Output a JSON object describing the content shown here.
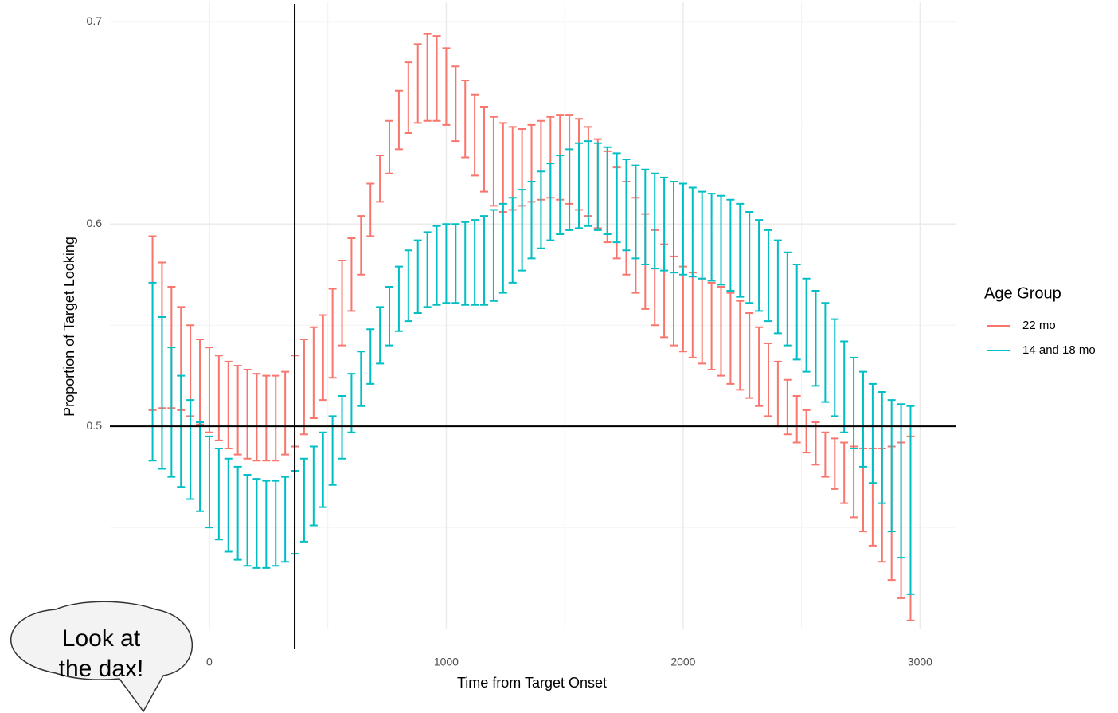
{
  "chart_data": {
    "type": "errorbar",
    "x_label": "Time from Target Onset",
    "y_label": "Proportion of Target Looking",
    "xlim": [
      -420,
      3150
    ],
    "xticks": [
      0,
      1000,
      2000,
      3000
    ],
    "minor_xticks": [
      500,
      1500,
      2500
    ],
    "ylim": [
      0.4,
      0.71
    ],
    "yticks": [
      0.5,
      0.6,
      0.7
    ],
    "minor_yticks": [
      0.45,
      0.55,
      0.65
    ],
    "grid": true,
    "hline": 0.5,
    "vline": 360,
    "legend_title": "Age Group",
    "legend_position": "right",
    "x": [
      -240,
      -200,
      -160,
      -120,
      -80,
      -40,
      0,
      40,
      80,
      120,
      160,
      200,
      240,
      280,
      320,
      360,
      400,
      440,
      480,
      520,
      560,
      600,
      640,
      680,
      720,
      760,
      800,
      840,
      880,
      920,
      960,
      1000,
      1040,
      1080,
      1120,
      1160,
      1200,
      1240,
      1280,
      1320,
      1360,
      1400,
      1440,
      1480,
      1520,
      1560,
      1600,
      1640,
      1680,
      1720,
      1760,
      1800,
      1840,
      1880,
      1920,
      1960,
      2000,
      2040,
      2080,
      2120,
      2160,
      2200,
      2240,
      2280,
      2320,
      2360,
      2400,
      2440,
      2480,
      2520,
      2560,
      2600,
      2640,
      2680,
      2720,
      2760,
      2800,
      2840,
      2880,
      2920,
      2960
    ],
    "series": [
      {
        "name": "22 mo",
        "color": "#F8766D",
        "ymin": [
          0.508,
          0.509,
          0.509,
          0.508,
          0.505,
          0.501,
          0.497,
          0.493,
          0.489,
          0.486,
          0.484,
          0.483,
          0.483,
          0.483,
          0.486,
          0.49,
          0.496,
          0.504,
          0.513,
          0.524,
          0.54,
          0.557,
          0.575,
          0.594,
          0.611,
          0.625,
          0.637,
          0.645,
          0.65,
          0.651,
          0.651,
          0.649,
          0.641,
          0.633,
          0.624,
          0.616,
          0.609,
          0.606,
          0.607,
          0.609,
          0.611,
          0.612,
          0.613,
          0.612,
          0.61,
          0.607,
          0.604,
          0.598,
          0.591,
          0.583,
          0.575,
          0.566,
          0.558,
          0.55,
          0.544,
          0.54,
          0.537,
          0.534,
          0.531,
          0.528,
          0.525,
          0.521,
          0.518,
          0.514,
          0.51,
          0.505,
          0.5,
          0.496,
          0.492,
          0.487,
          0.481,
          0.475,
          0.469,
          0.462,
          0.455,
          0.448,
          0.441,
          0.433,
          0.424,
          0.415,
          0.404
        ],
        "ymax": [
          0.594,
          0.581,
          0.569,
          0.559,
          0.55,
          0.543,
          0.539,
          0.535,
          0.532,
          0.53,
          0.528,
          0.526,
          0.525,
          0.525,
          0.527,
          0.535,
          0.543,
          0.549,
          0.555,
          0.568,
          0.582,
          0.593,
          0.604,
          0.62,
          0.634,
          0.651,
          0.666,
          0.68,
          0.689,
          0.694,
          0.693,
          0.687,
          0.678,
          0.671,
          0.664,
          0.658,
          0.653,
          0.65,
          0.648,
          0.647,
          0.649,
          0.651,
          0.653,
          0.654,
          0.654,
          0.652,
          0.648,
          0.642,
          0.636,
          0.628,
          0.621,
          0.613,
          0.605,
          0.597,
          0.59,
          0.584,
          0.579,
          0.576,
          0.573,
          0.571,
          0.569,
          0.566,
          0.562,
          0.556,
          0.549,
          0.541,
          0.532,
          0.523,
          0.515,
          0.508,
          0.502,
          0.497,
          0.494,
          0.492,
          0.49,
          0.489,
          0.489,
          0.489,
          0.49,
          0.492,
          0.495
        ]
      },
      {
        "name": "14 and 18 mo",
        "color": "#00BFC4",
        "ymin": [
          0.483,
          0.479,
          0.475,
          0.47,
          0.464,
          0.458,
          0.45,
          0.444,
          0.438,
          0.434,
          0.431,
          0.43,
          0.43,
          0.431,
          0.433,
          0.437,
          0.443,
          0.451,
          0.46,
          0.471,
          0.484,
          0.497,
          0.51,
          0.521,
          0.531,
          0.54,
          0.547,
          0.552,
          0.556,
          0.559,
          0.56,
          0.561,
          0.561,
          0.56,
          0.56,
          0.56,
          0.562,
          0.566,
          0.571,
          0.577,
          0.583,
          0.588,
          0.592,
          0.595,
          0.597,
          0.598,
          0.599,
          0.597,
          0.595,
          0.591,
          0.587,
          0.583,
          0.58,
          0.578,
          0.577,
          0.576,
          0.575,
          0.574,
          0.573,
          0.572,
          0.57,
          0.567,
          0.564,
          0.561,
          0.557,
          0.552,
          0.546,
          0.54,
          0.533,
          0.527,
          0.52,
          0.512,
          0.505,
          0.497,
          0.489,
          0.48,
          0.472,
          0.462,
          0.448,
          0.435,
          0.417
        ],
        "ymax": [
          0.571,
          0.554,
          0.539,
          0.525,
          0.513,
          0.502,
          0.495,
          0.489,
          0.484,
          0.48,
          0.476,
          0.474,
          0.473,
          0.473,
          0.475,
          0.478,
          0.484,
          0.49,
          0.497,
          0.505,
          0.515,
          0.526,
          0.537,
          0.548,
          0.559,
          0.569,
          0.579,
          0.587,
          0.592,
          0.596,
          0.599,
          0.6,
          0.6,
          0.601,
          0.602,
          0.604,
          0.607,
          0.61,
          0.613,
          0.617,
          0.621,
          0.626,
          0.63,
          0.634,
          0.637,
          0.64,
          0.641,
          0.64,
          0.638,
          0.635,
          0.632,
          0.629,
          0.627,
          0.625,
          0.623,
          0.621,
          0.62,
          0.618,
          0.616,
          0.615,
          0.614,
          0.612,
          0.61,
          0.606,
          0.602,
          0.597,
          0.592,
          0.586,
          0.58,
          0.573,
          0.567,
          0.561,
          0.553,
          0.542,
          0.534,
          0.527,
          0.521,
          0.517,
          0.513,
          0.511,
          0.51
        ]
      }
    ]
  },
  "callout": {
    "lines": [
      "Look at",
      "the dax!"
    ]
  }
}
